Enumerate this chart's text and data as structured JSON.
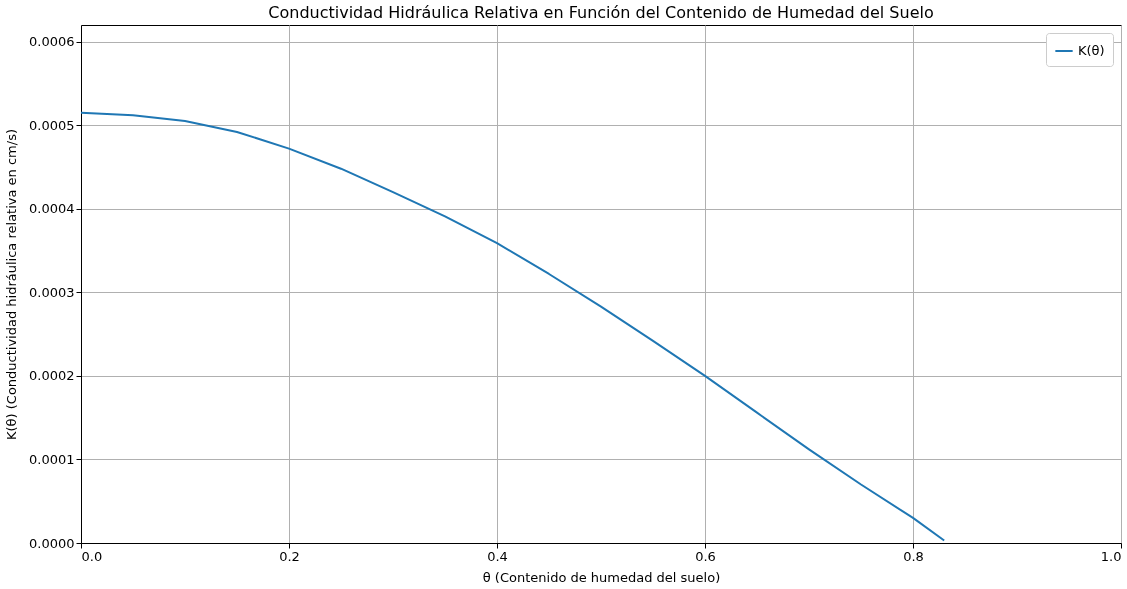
{
  "chart_data": {
    "type": "line",
    "title": "Conductividad Hidráulica Relativa en Función del Contenido de Humedad del Suelo",
    "xlabel": "θ (Contenido de humedad del suelo)",
    "ylabel": "K(θ) (Conductividad hidráulica relativa en cm/s)",
    "x": [
      0,
      0.05,
      0.1,
      0.15,
      0.2,
      0.25,
      0.3,
      0.35,
      0.4,
      0.45,
      0.5,
      0.55,
      0.6,
      0.65,
      0.7,
      0.75,
      0.8,
      0.83
    ],
    "series": [
      {
        "name": "K(θ)",
        "color": "#1f77b4",
        "values": [
          0.000515,
          0.000512,
          0.000505,
          0.000492,
          0.000472,
          0.000448,
          0.00042,
          0.000391,
          0.000359,
          0.000322,
          0.000283,
          0.000242,
          0.0002,
          0.000156,
          0.000112,
          7e-05,
          3e-05,
          3e-06
        ]
      }
    ],
    "xlim": [
      0,
      1
    ],
    "ylim": [
      0,
      0.00062
    ],
    "xticks": [
      {
        "value": 0,
        "label": "0.0"
      },
      0.2,
      0.4,
      0.6,
      0.8,
      {
        "value": 1,
        "label": "1.0"
      }
    ],
    "yticks": [
      {
        "value": 0,
        "label": "0.0000"
      },
      {
        "value": 0.0001,
        "label": "0.0001"
      },
      {
        "value": 0.0002,
        "label": "0.0002"
      },
      {
        "value": 0.0003,
        "label": "0.0003"
      },
      {
        "value": 0.0004,
        "label": "0.0004"
      },
      {
        "value": 0.0005,
        "label": "0.0005"
      },
      {
        "value": 0.0006,
        "label": "0.0006"
      }
    ],
    "grid": true,
    "legend": "top right",
    "line_style": "solid",
    "marker": "none"
  }
}
